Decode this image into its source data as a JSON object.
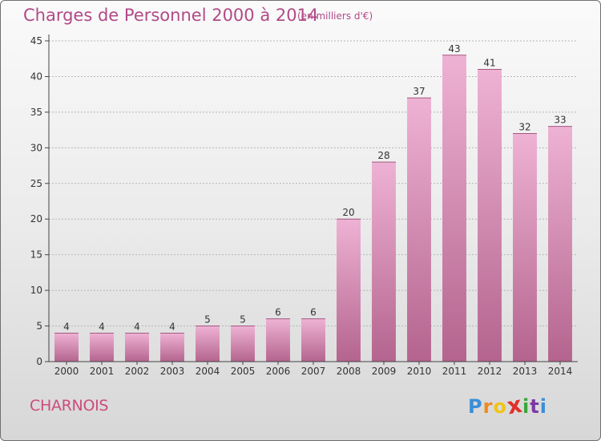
{
  "header": {
    "title": "Charges de Personnel 2000 à 2014",
    "subtitle": "(en milliers d'€)"
  },
  "footer": {
    "commune": "CHARNOIS",
    "brand_letters": [
      "P",
      "r",
      "o",
      "x",
      "i",
      "t",
      "i"
    ],
    "brand_colors": [
      "#3a8fd8",
      "#f08a1c",
      "#f0c419",
      "#e0312a",
      "#3aa63a",
      "#7b3aa3",
      "#3a8fd8"
    ]
  },
  "colors": {
    "bar_light": "#eeb2d4",
    "bar_dark": "#b4648e",
    "axis": "#444444",
    "grid": "#b5b5b5"
  },
  "chart_data": {
    "type": "bar",
    "title": "Charges de Personnel 2000 à 2014",
    "subtitle": "(en milliers d'€)",
    "xlabel": "",
    "ylabel": "",
    "categories": [
      "2000",
      "2001",
      "2002",
      "2003",
      "2004",
      "2005",
      "2006",
      "2007",
      "2008",
      "2009",
      "2010",
      "2011",
      "2012",
      "2013",
      "2014"
    ],
    "values": [
      4,
      4,
      4,
      4,
      5,
      5,
      6,
      6,
      20,
      28,
      37,
      43,
      41,
      32,
      33
    ],
    "ylim": [
      0,
      45
    ],
    "yticks": [
      0,
      5,
      10,
      15,
      20,
      25,
      30,
      35,
      40,
      45
    ],
    "grid": true,
    "data_labels": true
  }
}
